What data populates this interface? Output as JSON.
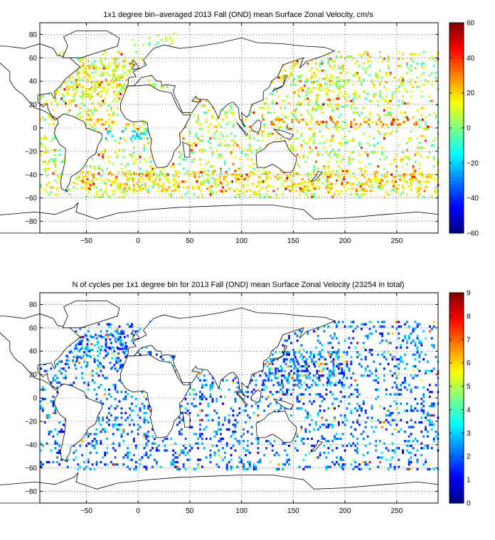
{
  "chart_data": [
    {
      "type": "heatmap",
      "title": "1x1 degree bin–averaged 2013 Fall (OND) mean Surface Zonal Velocity, cm/s",
      "xlabel": "",
      "ylabel": "",
      "xlim": [
        -95,
        290
      ],
      "ylim": [
        -90,
        90
      ],
      "xticks": [
        -50,
        0,
        50,
        100,
        150,
        200,
        250
      ],
      "xtick_labels": [
        "−50",
        "0",
        "50",
        "100",
        "150",
        "200",
        "250"
      ],
      "yticks": [
        80,
        60,
        40,
        20,
        0,
        -20,
        -40,
        -60,
        -80
      ],
      "ytick_labels": [
        "80",
        "60",
        "40",
        "20",
        "0",
        "−20",
        "−40",
        "−60",
        "−80"
      ],
      "grid": true,
      "colormap": "jet",
      "colorbar": {
        "min": -60,
        "max": 60,
        "ticks": [
          60,
          40,
          20,
          0,
          -20,
          -40,
          -60
        ],
        "tick_labels": [
          "60",
          "40",
          "20",
          "0",
          "−20",
          "−40",
          "−60"
        ]
      }
    },
    {
      "type": "heatmap",
      "title": "N of cycles per 1x1 degree bin for 2013 Fall (OND) mean Surface Zonal Velocity (23254 in total)",
      "xlabel": "",
      "ylabel": "",
      "xlim": [
        -95,
        290
      ],
      "ylim": [
        -90,
        90
      ],
      "xticks": [
        -50,
        0,
        50,
        100,
        150,
        200,
        250
      ],
      "xtick_labels": [
        "−50",
        "0",
        "50",
        "100",
        "150",
        "200",
        "250"
      ],
      "yticks": [
        80,
        60,
        40,
        20,
        0,
        -20,
        -40,
        -60,
        -80
      ],
      "ytick_labels": [
        "80",
        "60",
        "40",
        "20",
        "0",
        "−20",
        "−40",
        "−60",
        "−80"
      ],
      "grid": true,
      "colormap": "jet",
      "colorbar": {
        "min": 0,
        "max": 9,
        "ticks": [
          9,
          8,
          7,
          6,
          5,
          4,
          3,
          2,
          1,
          0
        ],
        "tick_labels": [
          "9",
          "8",
          "7",
          "6",
          "5",
          "4",
          "3",
          "2",
          "1",
          "0"
        ]
      }
    }
  ]
}
